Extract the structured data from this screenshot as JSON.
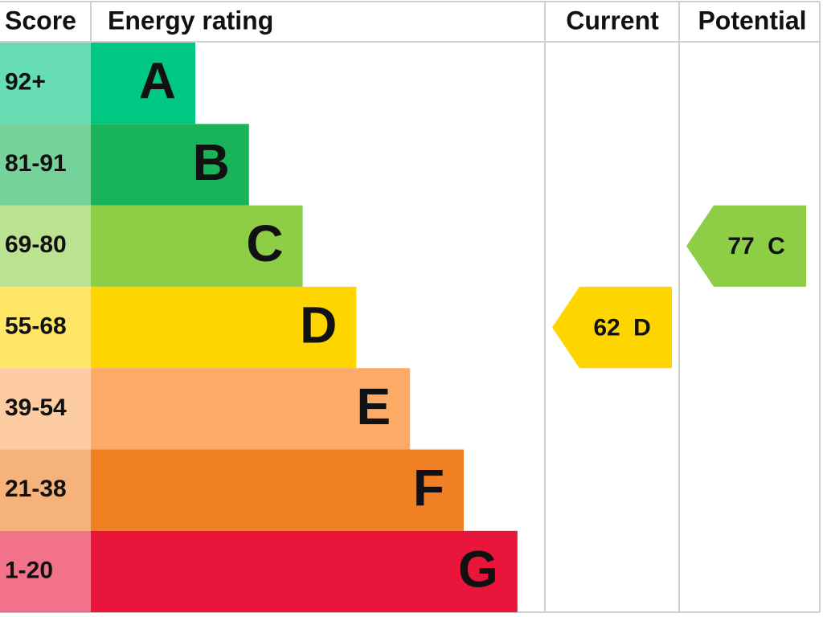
{
  "header": {
    "score": "Score",
    "rating": "Energy rating",
    "current": "Current",
    "potential": "Potential"
  },
  "bands": [
    {
      "score": "92+",
      "letter": "A",
      "color": "#00c781"
    },
    {
      "score": "81-91",
      "letter": "B",
      "color": "#19b459"
    },
    {
      "score": "69-80",
      "letter": "C",
      "color": "#8dce46"
    },
    {
      "score": "55-68",
      "letter": "D",
      "color": "#ffd500"
    },
    {
      "score": "39-54",
      "letter": "E",
      "color": "#fcaa65"
    },
    {
      "score": "21-38",
      "letter": "F",
      "color": "#ef8023"
    },
    {
      "score": "1-20",
      "letter": "G",
      "color": "#e9153b"
    }
  ],
  "current": {
    "score": 62,
    "band": "D"
  },
  "potential": {
    "score": 77,
    "band": "C"
  }
}
